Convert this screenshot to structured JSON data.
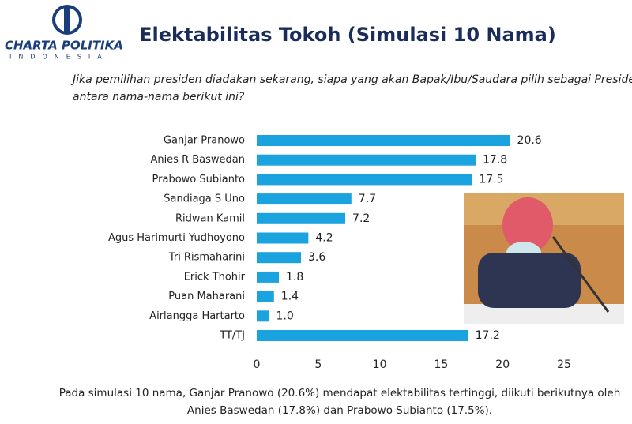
{
  "logo": {
    "name": "CHARTA POLITIKA",
    "country": "INDONESIA"
  },
  "chart_data": {
    "type": "bar",
    "orientation": "horizontal",
    "title": "Elektabilitas Tokoh (Simulasi 10 Nama)",
    "subtitle": [
      "Jika pemilihan presiden diadakan sekarang, siapa yang akan Bapak/Ibu/Saudara pilih sebagai Presiden di",
      "antara nama-nama berikut ini?"
    ],
    "categories": [
      "Ganjar Pranowo",
      "Anies R Baswedan",
      "Prabowo Subianto",
      "Sandiaga S Uno",
      "Ridwan Kamil",
      "Agus Harimurti Yudhoyono",
      "Tri Rismaharini",
      "Erick Thohir",
      "Puan Maharani",
      "Airlangga Hartarto",
      "TT/TJ"
    ],
    "values": [
      20.6,
      17.8,
      17.5,
      7.7,
      7.2,
      4.2,
      3.6,
      1.8,
      1.4,
      1.0,
      17.2
    ],
    "value_labels": [
      "20.6",
      "17.8",
      "17.5",
      "7.7",
      "7.2",
      "4.2",
      "3.6",
      "1.8",
      "1.4",
      "1.0",
      "17.2"
    ],
    "color": "#1ba3e0",
    "xlim": [
      0,
      25
    ],
    "xticks": [
      0,
      5,
      10,
      15,
      20,
      25
    ],
    "footnote": [
      "Pada simulasi 10 nama, Ganjar Pranowo (20.6%) mendapat elektabilitas tertinggi, diikuti berikutnya oleh",
      "Anies Baswedan (17.8%) dan Prabowo Subianto (17.5%)."
    ]
  }
}
